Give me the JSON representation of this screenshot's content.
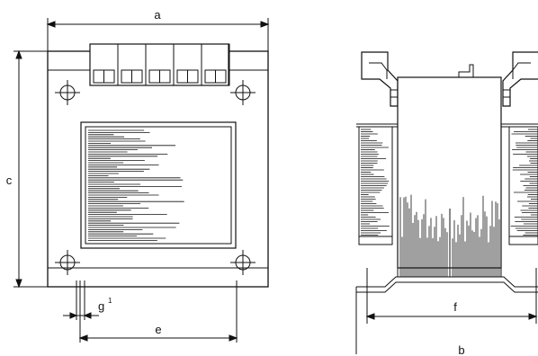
{
  "dimensions": {
    "a": "a",
    "b": "b",
    "c": "c",
    "e": "e",
    "f": "f",
    "g": "g",
    "g_sup": "1"
  },
  "colors": {
    "line": "#111111",
    "background": "#ffffff"
  },
  "terminal_block": {
    "terminal_count": 5
  }
}
